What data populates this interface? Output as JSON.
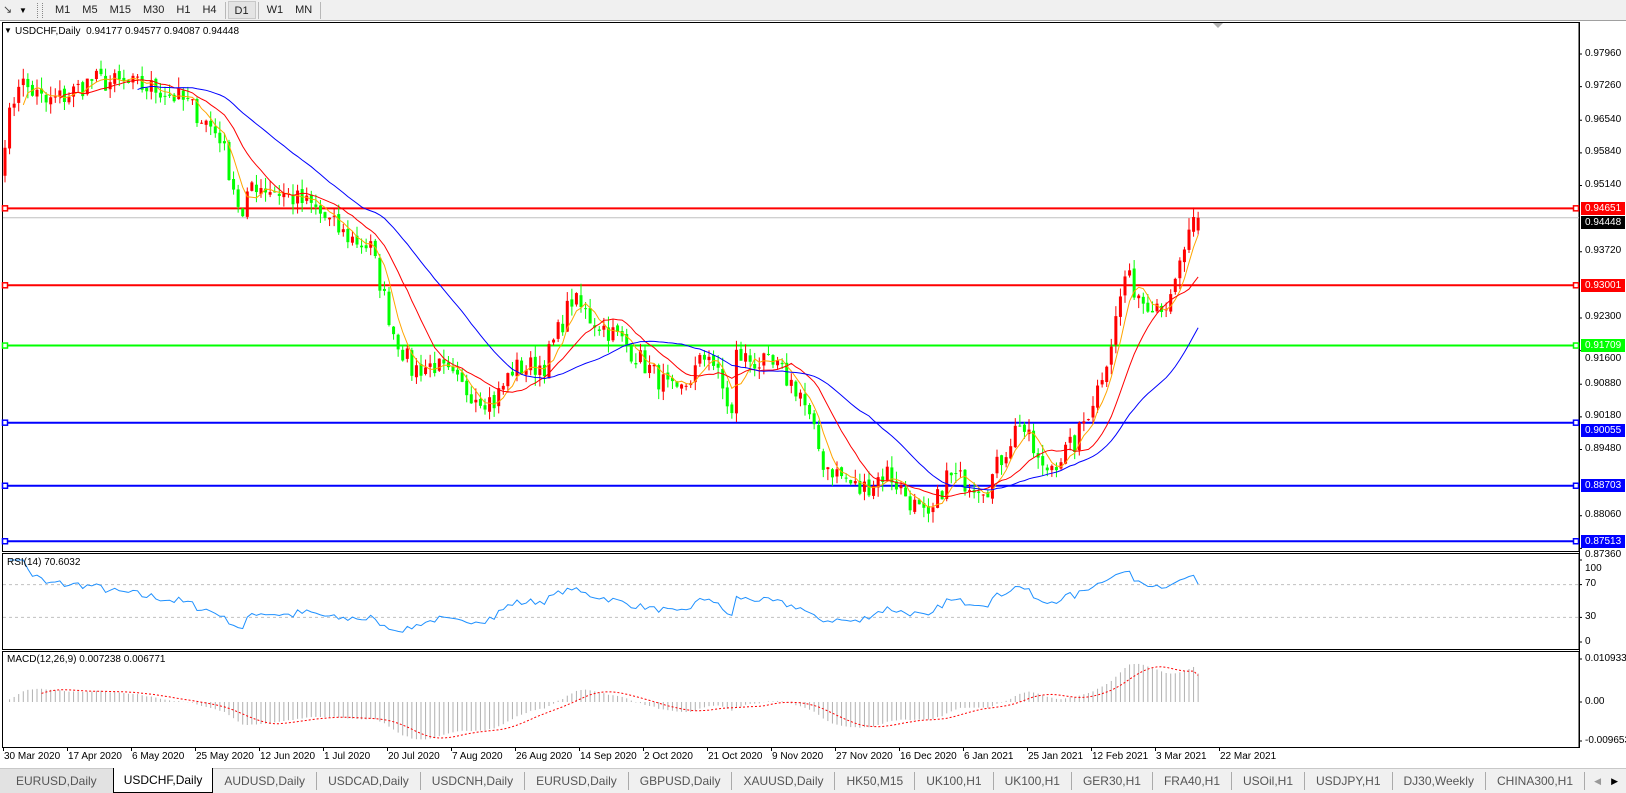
{
  "toolbar": {
    "tool_icon": "line-tools-icon",
    "timeframes": [
      "M1",
      "M5",
      "M15",
      "M30",
      "H1",
      "H4",
      "D1",
      "W1",
      "MN"
    ],
    "active_timeframe": "D1"
  },
  "chart": {
    "symbol_label": "USDCHF,Daily",
    "ohlc_text": "0.94177 0.94577 0.94087 0.94448",
    "last_bar": {
      "open": 0.94177,
      "high": 0.94577,
      "low": 0.94087,
      "close": 0.94448
    },
    "bull_color": "#ff0000",
    "bear_color": "#00ff00",
    "ma_colors": [
      "#ffa500",
      "#ff0000",
      "#0000ff"
    ],
    "current_price": "0.94448",
    "price_ticks": [
      "0.97960",
      "0.97260",
      "0.96540",
      "0.95840",
      "0.95140",
      "0.93720",
      "0.92300",
      "0.91600",
      "0.90880",
      "0.90180",
      "0.89480",
      "0.88060",
      "0.87360"
    ],
    "hlines": [
      {
        "price": "0.94651",
        "color": "#ff0000"
      },
      {
        "price": "0.93001",
        "color": "#ff0000"
      },
      {
        "price": "0.91709",
        "color": "#00ff00"
      },
      {
        "price": "0.90055",
        "color": "#0000ff"
      },
      {
        "price": "0.88703",
        "color": "#0000ff"
      },
      {
        "price": "0.87513",
        "color": "#0000ff"
      }
    ]
  },
  "rsi": {
    "label": "RSI(14) 70.6032",
    "levels": [
      "100",
      "70",
      "30",
      "0"
    ],
    "color": "#1e90ff"
  },
  "macd": {
    "label": "MACD(12,26,9) 0.007238 0.006771",
    "ticks": [
      "0.010933",
      "0.00",
      "-0.009653"
    ],
    "hist_color": "#b0b0b0",
    "signal_color": "#ff0000"
  },
  "dates": [
    "30 Mar 2020",
    "17 Apr 2020",
    "6 May 2020",
    "25 May 2020",
    "12 Jun 2020",
    "1 Jul 2020",
    "20 Jul 2020",
    "7 Aug 2020",
    "26 Aug 2020",
    "14 Sep 2020",
    "2 Oct 2020",
    "21 Oct 2020",
    "9 Nov 2020",
    "27 Nov 2020",
    "16 Dec 2020",
    "6 Jan 2021",
    "25 Jan 2021",
    "12 Feb 2021",
    "3 Mar 2021",
    "22 Mar 2021"
  ],
  "tabs": [
    "EURUSD,Daily",
    "USDCHF,Daily",
    "AUDUSD,Daily",
    "USDCAD,Daily",
    "USDCNH,Daily",
    "EURUSD,Daily",
    "GBPUSD,Daily",
    "XAUUSD,Daily",
    "HK50,M15",
    "UK100,H1",
    "UK100,H1",
    "GER30,H1",
    "FRA40,H1",
    "USOil,H1",
    "USDJPY,H1",
    "DJ30,Weekly",
    "CHINA300,H1"
  ],
  "active_tab": 1,
  "chart_data": {
    "type": "candlestick",
    "symbol": "USDCHF",
    "approx_closes": [
      [
        "2020-03-30",
        0.962
      ],
      [
        "2020-04-02",
        0.974
      ],
      [
        "2020-04-10",
        0.969
      ],
      [
        "2020-04-17",
        0.971
      ],
      [
        "2020-04-24",
        0.974
      ],
      [
        "2020-05-06",
        0.973
      ],
      [
        "2020-05-15",
        0.972
      ],
      [
        "2020-05-25",
        0.969
      ],
      [
        "2020-06-03",
        0.962
      ],
      [
        "2020-06-10",
        0.944
      ],
      [
        "2020-06-12",
        0.952
      ],
      [
        "2020-06-22",
        0.95
      ],
      [
        "2020-07-01",
        0.947
      ],
      [
        "2020-07-10",
        0.941
      ],
      [
        "2020-07-20",
        0.938
      ],
      [
        "2020-07-27",
        0.92
      ],
      [
        "2020-07-31",
        0.912
      ],
      [
        "2020-08-07",
        0.913
      ],
      [
        "2020-08-17",
        0.908
      ],
      [
        "2020-08-26",
        0.905
      ],
      [
        "2020-09-01",
        0.912
      ],
      [
        "2020-09-10",
        0.913
      ],
      [
        "2020-09-18",
        0.927
      ],
      [
        "2020-09-24",
        0.923
      ],
      [
        "2020-10-02",
        0.919
      ],
      [
        "2020-10-12",
        0.913
      ],
      [
        "2020-10-21",
        0.906
      ],
      [
        "2020-10-30",
        0.916
      ],
      [
        "2020-11-06",
        0.902
      ],
      [
        "2020-11-09",
        0.915
      ],
      [
        "2020-11-20",
        0.912
      ],
      [
        "2020-11-27",
        0.907
      ],
      [
        "2020-12-04",
        0.892
      ],
      [
        "2020-12-16",
        0.886
      ],
      [
        "2020-12-24",
        0.89
      ],
      [
        "2021-01-06",
        0.879
      ],
      [
        "2021-01-12",
        0.889
      ],
      [
        "2021-01-25",
        0.887
      ],
      [
        "2021-02-03",
        0.901
      ],
      [
        "2021-02-10",
        0.89
      ],
      [
        "2021-02-19",
        0.896
      ],
      [
        "2021-02-26",
        0.908
      ],
      [
        "2021-03-03",
        0.918
      ],
      [
        "2021-03-08",
        0.932
      ],
      [
        "2021-03-12",
        0.927
      ],
      [
        "2021-03-22",
        0.926
      ],
      [
        "2021-03-25",
        0.938
      ],
      [
        "2021-03-30",
        0.9445
      ]
    ],
    "moving_averages": [
      "short (orange)",
      "medium (red)",
      "long (blue)"
    ],
    "rsi_period": 14,
    "macd_params": [
      12,
      26,
      9
    ]
  }
}
